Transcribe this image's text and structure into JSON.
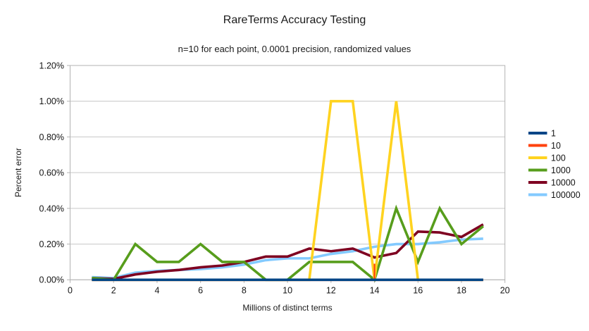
{
  "chart_data": {
    "type": "line",
    "title": "RareTerms Accuracy Testing",
    "subtitle": "n=10 for each point, 0.0001 precision, randomized values",
    "xlabel": "Millions of distinct terms",
    "ylabel": "Percent error",
    "xlim": [
      0,
      20
    ],
    "ylim_percent": [
      0,
      1.2
    ],
    "grid": true,
    "legend_position": "right",
    "x_tick_values": [
      0,
      2,
      4,
      6,
      8,
      10,
      12,
      14,
      16,
      18,
      20
    ],
    "y_tick_values": [
      0,
      0.2,
      0.4,
      0.6,
      0.8,
      1.0,
      1.2
    ],
    "y_tick_labels": [
      "0.00%",
      "0.20%",
      "0.40%",
      "0.60%",
      "0.80%",
      "1.00%",
      "1.20%"
    ],
    "x": [
      1,
      2,
      3,
      4,
      5,
      6,
      7,
      8,
      9,
      10,
      11,
      12,
      13,
      14,
      15,
      16,
      17,
      18,
      19
    ],
    "series": [
      {
        "name": "1",
        "color": "#004586",
        "values_percent": [
          0,
          0,
          0,
          0,
          0,
          0,
          0,
          0,
          0,
          0,
          0,
          0,
          0,
          0,
          0,
          0,
          0,
          0,
          0
        ]
      },
      {
        "name": "10",
        "color": "#ff420e",
        "values_percent": [
          0,
          0,
          0,
          0,
          0,
          0,
          0,
          0,
          0,
          0,
          0,
          0,
          0,
          0,
          0,
          0,
          0,
          0,
          0
        ]
      },
      {
        "name": "100",
        "color": "#ffd320",
        "values_percent": [
          0,
          0,
          0,
          0,
          0,
          0,
          0,
          0,
          0,
          0,
          0,
          1.0,
          1.0,
          0,
          1.0,
          0,
          0,
          0,
          0
        ]
      },
      {
        "name": "1000",
        "color": "#579d1c",
        "values_percent": [
          0.01,
          0,
          0.2,
          0.1,
          0.1,
          0.2,
          0.1,
          0.1,
          0,
          0,
          0.1,
          0.1,
          0.1,
          0,
          0.4,
          0.1,
          0.4,
          0.2,
          0.3
        ]
      },
      {
        "name": "10000",
        "color": "#7e0021",
        "values_percent": [
          0.01,
          0.005,
          0.03,
          0.045,
          0.055,
          0.07,
          0.08,
          0.1,
          0.13,
          0.13,
          0.175,
          0.16,
          0.175,
          0.125,
          0.15,
          0.27,
          0.265,
          0.24,
          0.31
        ]
      },
      {
        "name": "100000",
        "color": "#83caff",
        "values_percent": [
          0.015,
          0.01,
          0.04,
          0.05,
          0.055,
          0.06,
          0.07,
          0.085,
          0.11,
          0.12,
          0.12,
          0.145,
          0.16,
          0.185,
          0.2,
          0.2,
          0.21,
          0.225,
          0.23
        ]
      }
    ],
    "artifact_orange_tick": {
      "series": "10",
      "x": 14,
      "from_percent": 0,
      "to_percent": 0.09
    },
    "axis_color": "#b3b3b3",
    "gridline_color": "#c6c6c6"
  }
}
